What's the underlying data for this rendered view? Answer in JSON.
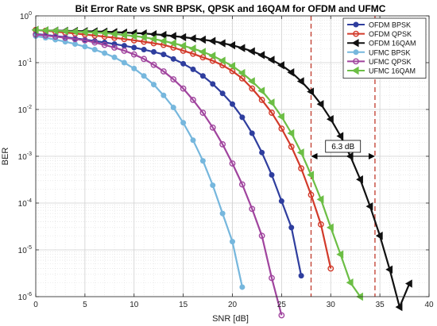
{
  "chart_data": {
    "type": "line",
    "title": "Bit Error Rate vs SNR BPSK, QPSK and 16QAM for OFDM and UFMC",
    "xlabel": "SNR [dB]",
    "ylabel": "BER",
    "xlim": [
      0,
      40
    ],
    "ylim": [
      1e-06,
      1
    ],
    "yscale": "log",
    "grid": true,
    "legend_position": "top-right",
    "x_ticks": [
      0,
      5,
      10,
      15,
      20,
      25,
      30,
      35,
      40
    ],
    "y_ticks": [
      {
        "value": 1,
        "base": "10",
        "exp": "0"
      },
      {
        "value": 0.1,
        "base": "10",
        "exp": "-1"
      },
      {
        "value": 0.01,
        "base": "10",
        "exp": "-2"
      },
      {
        "value": 0.001,
        "base": "10",
        "exp": "-3"
      },
      {
        "value": 0.0001,
        "base": "10",
        "exp": "-4"
      },
      {
        "value": 1e-05,
        "base": "10",
        "exp": "-5"
      },
      {
        "value": 1e-06,
        "base": "10",
        "exp": "-6"
      }
    ],
    "series": [
      {
        "name": "OFDM BPSK",
        "color": "#2F3E9E",
        "marker": "filled-circle",
        "x": [
          0,
          1,
          2,
          3,
          4,
          5,
          6,
          7,
          8,
          9,
          10,
          11,
          12,
          13,
          14,
          15,
          16,
          17,
          18,
          19,
          20,
          21,
          22,
          23,
          24,
          25,
          26,
          27
        ],
        "y": [
          0.41,
          0.39,
          0.37,
          0.35,
          0.33,
          0.31,
          0.29,
          0.27,
          0.25,
          0.23,
          0.21,
          0.19,
          0.17,
          0.15,
          0.12,
          0.095,
          0.072,
          0.052,
          0.035,
          0.022,
          0.013,
          0.0068,
          0.0031,
          0.0012,
          0.0004,
          0.00011,
          3e-05,
          2.8e-06
        ]
      },
      {
        "name": "OFDM QPSK",
        "color": "#D23A2A",
        "marker": "open-circle",
        "x": [
          0,
          1,
          2,
          3,
          4,
          5,
          6,
          7,
          8,
          9,
          10,
          11,
          12,
          13,
          14,
          15,
          16,
          17,
          18,
          19,
          20,
          21,
          22,
          23,
          24,
          25,
          26,
          27,
          28,
          29,
          30
        ],
        "y": [
          0.5,
          0.48,
          0.46,
          0.44,
          0.42,
          0.4,
          0.38,
          0.36,
          0.34,
          0.32,
          0.3,
          0.28,
          0.26,
          0.24,
          0.21,
          0.18,
          0.155,
          0.13,
          0.11,
          0.088,
          0.066,
          0.046,
          0.028,
          0.016,
          0.0085,
          0.0039,
          0.0016,
          0.00055,
          0.00015,
          3.5e-05,
          4e-06
        ]
      },
      {
        "name": "OFDM 16QAM",
        "color": "#111111",
        "marker": "filled-triangle-left",
        "x": [
          0,
          1,
          2,
          3,
          4,
          5,
          6,
          7,
          8,
          9,
          10,
          11,
          12,
          13,
          14,
          15,
          16,
          17,
          18,
          19,
          20,
          21,
          22,
          23,
          24,
          25,
          26,
          27,
          28,
          29,
          30,
          31,
          32,
          33,
          34,
          35,
          36,
          37,
          38
        ],
        "y": [
          0.5,
          0.49,
          0.485,
          0.48,
          0.475,
          0.47,
          0.465,
          0.46,
          0.45,
          0.44,
          0.43,
          0.42,
          0.405,
          0.39,
          0.37,
          0.35,
          0.33,
          0.31,
          0.29,
          0.26,
          0.235,
          0.205,
          0.175,
          0.145,
          0.115,
          0.088,
          0.062,
          0.04,
          0.024,
          0.013,
          0.0062,
          0.0027,
          0.001,
          0.00032,
          8.5e-05,
          2e-05,
          3.8e-06,
          6e-07,
          1.9e-06
        ]
      },
      {
        "name": "UFMC BPSK",
        "color": "#76B7DD",
        "marker": "filled-circle",
        "x": [
          0,
          1,
          2,
          3,
          4,
          5,
          6,
          7,
          8,
          9,
          10,
          11,
          12,
          13,
          14,
          15,
          16,
          17,
          18,
          19,
          20,
          21
        ],
        "y": [
          0.37,
          0.34,
          0.31,
          0.28,
          0.25,
          0.22,
          0.19,
          0.16,
          0.13,
          0.1,
          0.075,
          0.052,
          0.034,
          0.02,
          0.011,
          0.0052,
          0.0022,
          0.0008,
          0.00024,
          6e-05,
          1.5e-05,
          1.6e-06
        ]
      },
      {
        "name": "UFMC QPSK",
        "color": "#A0449E",
        "marker": "open-circle",
        "x": [
          0,
          1,
          2,
          3,
          4,
          5,
          6,
          7,
          8,
          9,
          10,
          11,
          12,
          13,
          14,
          15,
          16,
          17,
          18,
          19,
          20,
          21,
          22,
          23,
          24,
          25
        ],
        "y": [
          0.4,
          0.38,
          0.36,
          0.34,
          0.32,
          0.3,
          0.27,
          0.24,
          0.21,
          0.18,
          0.15,
          0.12,
          0.09,
          0.065,
          0.044,
          0.028,
          0.016,
          0.0085,
          0.0041,
          0.0018,
          0.0007,
          0.00025,
          7.5e-05,
          2e-05,
          2.5e-06,
          4e-07
        ]
      },
      {
        "name": "UFMC 16QAM",
        "color": "#6CBE45",
        "marker": "filled-triangle-left",
        "x": [
          0,
          1,
          2,
          3,
          4,
          5,
          6,
          7,
          8,
          9,
          10,
          11,
          12,
          13,
          14,
          15,
          16,
          17,
          18,
          19,
          20,
          21,
          22,
          23,
          24,
          25,
          26,
          27,
          28,
          29,
          30,
          31,
          32,
          33
        ],
        "y": [
          0.5,
          0.49,
          0.48,
          0.47,
          0.46,
          0.45,
          0.44,
          0.43,
          0.41,
          0.39,
          0.37,
          0.35,
          0.32,
          0.29,
          0.26,
          0.23,
          0.2,
          0.17,
          0.14,
          0.11,
          0.085,
          0.06,
          0.04,
          0.025,
          0.014,
          0.007,
          0.0031,
          0.0012,
          0.0004,
          0.00012,
          3e-05,
          8e-06,
          2e-06,
          1e-06
        ]
      }
    ],
    "vlines": [
      {
        "x": 28,
        "color": "#C0392B"
      },
      {
        "x": 34.5,
        "color": "#C0392B"
      }
    ],
    "annotation": {
      "text": "6.3 dB",
      "x_from": 28,
      "x_to": 34.5,
      "y": 0.001
    }
  }
}
